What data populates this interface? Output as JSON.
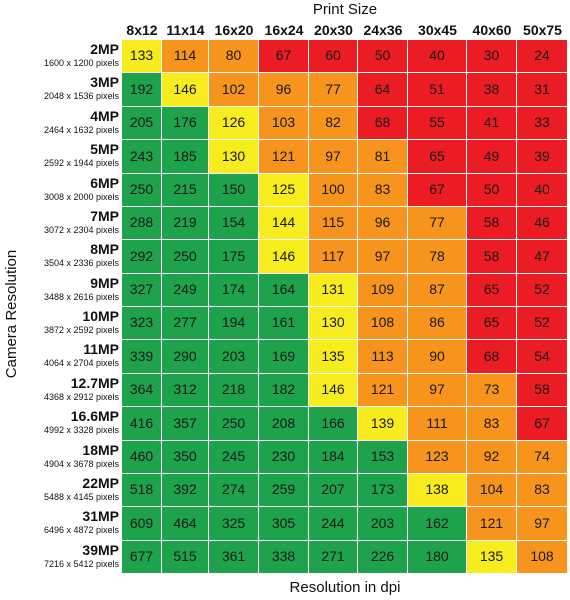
{
  "chart_data": {
    "type": "heatmap",
    "title": "Print Size",
    "xlabel": "Resolution in dpi",
    "ylabel": "Camera Resolution",
    "print_sizes": [
      "8x12",
      "11x14",
      "16x20",
      "16x24",
      "20x30",
      "24x36",
      "30x45",
      "40x60",
      "50x75"
    ],
    "cameras": [
      {
        "label": "2MP",
        "pixels": "1600 x 1200 pixels"
      },
      {
        "label": "3MP",
        "pixels": "2048 x 1536 pixels"
      },
      {
        "label": "4MP",
        "pixels": "2464 x 1632 pixels"
      },
      {
        "label": "5MP",
        "pixels": "2592 x 1944 pixels"
      },
      {
        "label": "6MP",
        "pixels": "3008 x 2000 pixels"
      },
      {
        "label": "7MP",
        "pixels": "3072 x 2304 pixels"
      },
      {
        "label": "8MP",
        "pixels": "3504 x 2336 pixels"
      },
      {
        "label": "9MP",
        "pixels": "3488 x 2616 pixels"
      },
      {
        "label": "10MP",
        "pixels": "3872 x 2592 pixels"
      },
      {
        "label": "11MP",
        "pixels": "4064 x 2704 pixels"
      },
      {
        "label": "12.7MP",
        "pixels": "4368 x 2912 pixels"
      },
      {
        "label": "16.6MP",
        "pixels": "4992 x 3328 pixels"
      },
      {
        "label": "18MP",
        "pixels": "4904 x 3678 pixels"
      },
      {
        "label": "22MP",
        "pixels": "5488 x 4145 pixels"
      },
      {
        "label": "31MP",
        "pixels": "6496 x 4872 pixels"
      },
      {
        "label": "39MP",
        "pixels": "7216 x 5412 pixels"
      }
    ],
    "values": [
      [
        133,
        114,
        80,
        67,
        60,
        50,
        40,
        30,
        24
      ],
      [
        192,
        146,
        102,
        96,
        77,
        64,
        51,
        38,
        31
      ],
      [
        205,
        176,
        126,
        103,
        82,
        68,
        55,
        41,
        33
      ],
      [
        243,
        185,
        130,
        121,
        97,
        81,
        65,
        49,
        39
      ],
      [
        250,
        215,
        150,
        125,
        100,
        83,
        67,
        50,
        40
      ],
      [
        288,
        219,
        154,
        144,
        115,
        96,
        77,
        58,
        46
      ],
      [
        292,
        250,
        175,
        146,
        117,
        97,
        78,
        58,
        47
      ],
      [
        327,
        249,
        174,
        164,
        131,
        109,
        87,
        65,
        52
      ],
      [
        323,
        277,
        194,
        161,
        130,
        108,
        86,
        65,
        52
      ],
      [
        339,
        290,
        203,
        169,
        135,
        113,
        90,
        68,
        54
      ],
      [
        364,
        312,
        218,
        182,
        146,
        121,
        97,
        73,
        58
      ],
      [
        416,
        357,
        250,
        208,
        166,
        139,
        111,
        83,
        67
      ],
      [
        460,
        350,
        245,
        230,
        184,
        153,
        123,
        92,
        74
      ],
      [
        518,
        392,
        274,
        259,
        207,
        173,
        138,
        104,
        83
      ],
      [
        609,
        464,
        325,
        305,
        244,
        203,
        162,
        121,
        97
      ],
      [
        677,
        515,
        361,
        338,
        271,
        226,
        180,
        135,
        108
      ]
    ],
    "quality_levels": [
      "green",
      "yellow",
      "orange",
      "red"
    ],
    "cell_levels": [
      [
        1,
        2,
        2,
        3,
        3,
        3,
        3,
        3,
        3
      ],
      [
        0,
        1,
        2,
        2,
        2,
        3,
        3,
        3,
        3
      ],
      [
        0,
        0,
        1,
        2,
        2,
        3,
        3,
        3,
        3
      ],
      [
        0,
        0,
        1,
        2,
        2,
        2,
        3,
        3,
        3
      ],
      [
        0,
        0,
        0,
        1,
        2,
        2,
        3,
        3,
        3
      ],
      [
        0,
        0,
        0,
        1,
        2,
        2,
        2,
        3,
        3
      ],
      [
        0,
        0,
        0,
        1,
        2,
        2,
        2,
        3,
        3
      ],
      [
        0,
        0,
        0,
        0,
        1,
        2,
        2,
        3,
        3
      ],
      [
        0,
        0,
        0,
        0,
        1,
        2,
        2,
        3,
        3
      ],
      [
        0,
        0,
        0,
        0,
        1,
        2,
        2,
        3,
        3
      ],
      [
        0,
        0,
        0,
        0,
        1,
        2,
        2,
        2,
        3
      ],
      [
        0,
        0,
        0,
        0,
        0,
        1,
        2,
        2,
        3
      ],
      [
        0,
        0,
        0,
        0,
        0,
        0,
        2,
        2,
        2
      ],
      [
        0,
        0,
        0,
        0,
        0,
        0,
        1,
        2,
        2
      ],
      [
        0,
        0,
        0,
        0,
        0,
        0,
        0,
        2,
        2
      ],
      [
        0,
        0,
        0,
        0,
        0,
        0,
        0,
        1,
        2
      ]
    ],
    "colors": {
      "green": "#1ea24b",
      "yellow": "#f6ec1e",
      "orange": "#f7941d",
      "red": "#ec1c24"
    },
    "grid": true,
    "legend": "none"
  }
}
